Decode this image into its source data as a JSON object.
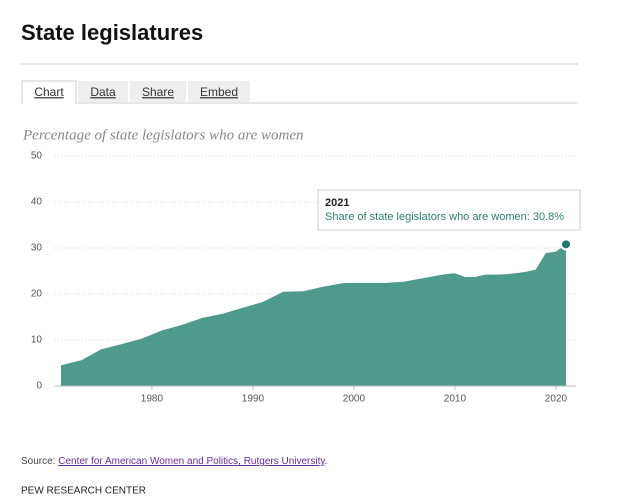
{
  "header": {
    "title": "State legislatures"
  },
  "tabs": [
    "Chart",
    "Data",
    "Share",
    "Embed"
  ],
  "chart_data": {
    "type": "area",
    "subtitle": "Percentage of state legislators who are women",
    "x": [
      1971,
      1973,
      1975,
      1977,
      1979,
      1981,
      1983,
      1985,
      1987,
      1989,
      1991,
      1993,
      1995,
      1997,
      1999,
      2001,
      2003,
      2005,
      2007,
      2009,
      2010,
      2011,
      2012,
      2013,
      2014,
      2015,
      2016,
      2017,
      2018,
      2019,
      2020,
      2021
    ],
    "values": [
      4.5,
      5.6,
      8.0,
      9.1,
      10.3,
      12.1,
      13.3,
      14.8,
      15.7,
      17.0,
      18.3,
      20.5,
      20.6,
      21.6,
      22.4,
      22.4,
      22.4,
      22.7,
      23.5,
      24.3,
      24.5,
      23.7,
      23.7,
      24.2,
      24.2,
      24.3,
      24.5,
      24.8,
      25.3,
      28.9,
      29.2,
      30.8
    ],
    "color": "#4e9b8b",
    "xlim": [
      1971,
      2021
    ],
    "xticks": [
      1980,
      1990,
      2000,
      2010,
      2020
    ],
    "ylim": [
      0,
      50
    ],
    "yticks": [
      0,
      10,
      20,
      30,
      40,
      50
    ],
    "grid": true,
    "tooltip": {
      "title": "2021",
      "text": "Share of state legislators who are women: 30.8%"
    }
  },
  "source": {
    "label": "Source:",
    "link": "Center for American Women and Politics, Rutgers University",
    "suffix": "."
  },
  "footer": "PEW RESEARCH CENTER"
}
